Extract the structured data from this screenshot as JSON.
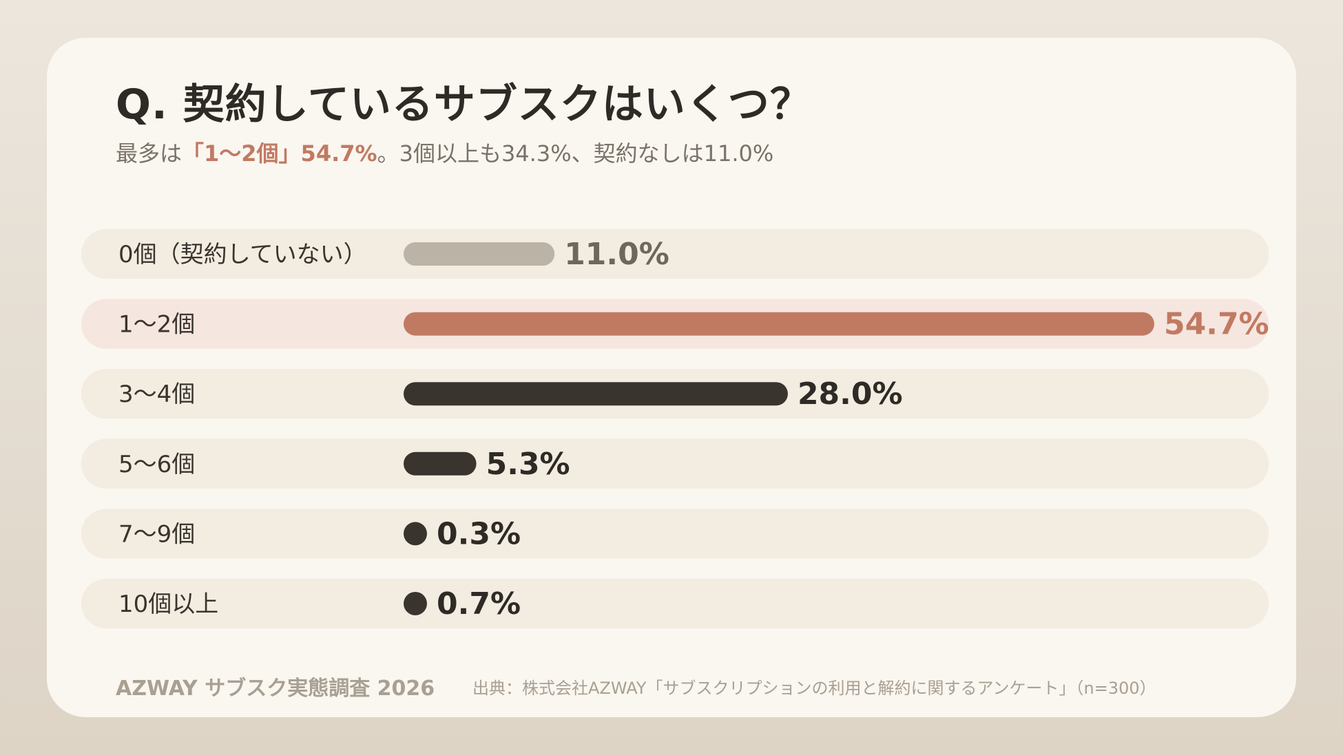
{
  "header": {
    "title": "Q. 契約しているサブスクはいくつ？",
    "subtitle_prefix": "最多は",
    "subtitle_highlight": "「1〜2個」54.7%",
    "subtitle_suffix": "。3個以上も34.3%、契約なしは11.0%"
  },
  "chart_data": {
    "type": "bar",
    "orientation": "horizontal",
    "categories": [
      "0個（契約していない）",
      "1〜2個",
      "3〜4個",
      "5〜6個",
      "7〜9個",
      "10個以上"
    ],
    "values": [
      11.0,
      54.7,
      28.0,
      5.3,
      0.3,
      0.7
    ],
    "value_labels": [
      "11.0%",
      "54.7%",
      "28.0%",
      "5.3%",
      "0.3%",
      "0.7%"
    ],
    "highlight_index": 1,
    "xlim": [
      0,
      54.7
    ],
    "grid": false,
    "legend": false
  },
  "colors": {
    "highlight_bar": "#c17a62",
    "highlight_track": "#f5e6df",
    "none_bar": "#bcb3a7",
    "none_label": "#6f675d",
    "default_bar": "#3a342e",
    "default_label": "#2e2a25",
    "track": "#f2ece1",
    "category_text": "#3a342e"
  },
  "footer": {
    "brand": "AZWAY サブスク実態調査 2026",
    "source": "出典：株式会社AZWAY「サブスクリプションの利用と解約に関するアンケート」（n=300）"
  }
}
